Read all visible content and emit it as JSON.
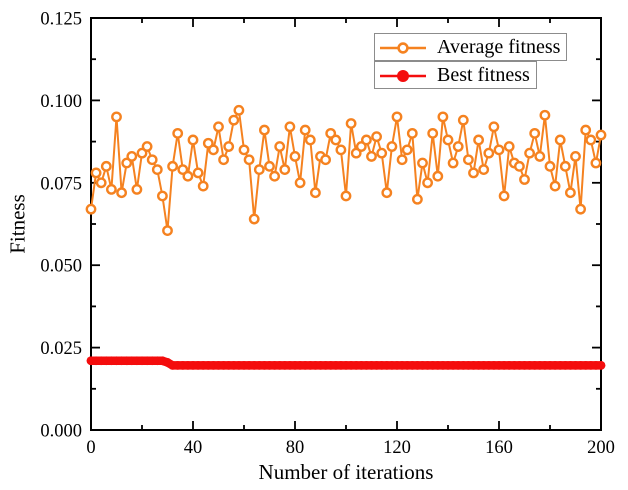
{
  "page": {
    "background": "#ffffff"
  },
  "chart_data": {
    "type": "line",
    "title": "",
    "xlabel": "Number of iterations",
    "ylabel": "Fitness",
    "xlim": [
      0,
      200
    ],
    "ylim": [
      0.0,
      0.125
    ],
    "x_ticks": [
      0,
      40,
      80,
      120,
      160,
      200
    ],
    "x_tick_labels": [
      "0",
      "40",
      "80",
      "120",
      "160",
      "200"
    ],
    "minor_x_ticks": [
      20,
      60,
      100,
      140,
      180
    ],
    "y_ticks": [
      0.0,
      0.025,
      0.05,
      0.075,
      0.1,
      0.125
    ],
    "y_tick_labels": [
      "0.000",
      "0.025",
      "0.050",
      "0.075",
      "0.100",
      "0.125"
    ],
    "minor_y_ticks": [
      0.0125,
      0.0375,
      0.0625,
      0.0875,
      0.1125
    ],
    "grid": false,
    "axis_color": "#000000",
    "tick_style": "inward",
    "legend": {
      "position": "top-right-inside",
      "border_color": "#8c8c8c",
      "background": "#ffffff"
    },
    "series": [
      {
        "name": "Average fitness",
        "color": "#F58220",
        "marker": "open-circle",
        "x": [
          0,
          2,
          4,
          6,
          8,
          10,
          12,
          14,
          16,
          18,
          20,
          22,
          24,
          26,
          28,
          30,
          32,
          34,
          36,
          38,
          40,
          42,
          44,
          46,
          48,
          50,
          52,
          54,
          56,
          58,
          60,
          62,
          64,
          66,
          68,
          70,
          72,
          74,
          76,
          78,
          80,
          82,
          84,
          86,
          88,
          90,
          92,
          94,
          96,
          98,
          100,
          102,
          104,
          106,
          108,
          110,
          112,
          114,
          116,
          118,
          120,
          122,
          124,
          126,
          128,
          130,
          132,
          134,
          136,
          138,
          140,
          142,
          144,
          146,
          148,
          150,
          152,
          154,
          156,
          158,
          160,
          162,
          164,
          166,
          168,
          170,
          172,
          174,
          176,
          178,
          180,
          182,
          184,
          186,
          188,
          190,
          192,
          194,
          196,
          198,
          200
        ],
        "values": [
          0.067,
          0.078,
          0.075,
          0.08,
          0.073,
          0.095,
          0.072,
          0.081,
          0.083,
          0.073,
          0.084,
          0.086,
          0.082,
          0.079,
          0.071,
          0.0605,
          0.08,
          0.09,
          0.079,
          0.077,
          0.088,
          0.078,
          0.074,
          0.087,
          0.085,
          0.092,
          0.082,
          0.086,
          0.094,
          0.097,
          0.085,
          0.082,
          0.064,
          0.079,
          0.091,
          0.08,
          0.077,
          0.086,
          0.079,
          0.092,
          0.083,
          0.075,
          0.091,
          0.088,
          0.072,
          0.083,
          0.082,
          0.09,
          0.088,
          0.085,
          0.071,
          0.093,
          0.084,
          0.086,
          0.088,
          0.083,
          0.089,
          0.084,
          0.072,
          0.086,
          0.095,
          0.082,
          0.085,
          0.09,
          0.07,
          0.081,
          0.075,
          0.09,
          0.077,
          0.095,
          0.088,
          0.081,
          0.086,
          0.094,
          0.082,
          0.078,
          0.088,
          0.079,
          0.084,
          0.092,
          0.085,
          0.071,
          0.086,
          0.081,
          0.08,
          0.076,
          0.084,
          0.09,
          0.083,
          0.0955,
          0.08,
          0.074,
          0.088,
          0.08,
          0.072,
          0.083,
          0.067,
          0.091,
          0.088,
          0.081,
          0.0895
        ]
      },
      {
        "name": "Best fitness",
        "color": "#F40D0D",
        "marker": "filled-circle",
        "x": [
          0,
          2,
          4,
          6,
          8,
          10,
          12,
          14,
          16,
          18,
          20,
          22,
          24,
          26,
          28,
          30,
          32,
          34,
          36,
          38,
          40,
          42,
          44,
          46,
          48,
          50,
          52,
          54,
          56,
          58,
          60,
          62,
          64,
          66,
          68,
          70,
          72,
          74,
          76,
          78,
          80,
          82,
          84,
          86,
          88,
          90,
          92,
          94,
          96,
          98,
          100,
          102,
          104,
          106,
          108,
          110,
          112,
          114,
          116,
          118,
          120,
          122,
          124,
          126,
          128,
          130,
          132,
          134,
          136,
          138,
          140,
          142,
          144,
          146,
          148,
          150,
          152,
          154,
          156,
          158,
          160,
          162,
          164,
          166,
          168,
          170,
          172,
          174,
          176,
          178,
          180,
          182,
          184,
          186,
          188,
          190,
          192,
          194,
          196,
          198,
          200
        ],
        "values": [
          0.021,
          0.021,
          0.021,
          0.021,
          0.021,
          0.021,
          0.021,
          0.021,
          0.021,
          0.021,
          0.021,
          0.021,
          0.021,
          0.021,
          0.021,
          0.0205,
          0.0196,
          0.0196,
          0.0196,
          0.0196,
          0.0196,
          0.0196,
          0.0196,
          0.0196,
          0.0196,
          0.0196,
          0.0196,
          0.0196,
          0.0196,
          0.0196,
          0.0196,
          0.0196,
          0.0196,
          0.0196,
          0.0196,
          0.0196,
          0.0196,
          0.0196,
          0.0196,
          0.0196,
          0.0196,
          0.0196,
          0.0196,
          0.0196,
          0.0196,
          0.0196,
          0.0196,
          0.0196,
          0.0196,
          0.0196,
          0.0196,
          0.0196,
          0.0196,
          0.0196,
          0.0196,
          0.0196,
          0.0196,
          0.0196,
          0.0196,
          0.0196,
          0.0196,
          0.0196,
          0.0196,
          0.0196,
          0.0196,
          0.0196,
          0.0196,
          0.0196,
          0.0196,
          0.0196,
          0.0196,
          0.0196,
          0.0196,
          0.0196,
          0.0196,
          0.0196,
          0.0196,
          0.0196,
          0.0196,
          0.0196,
          0.0196,
          0.0196,
          0.0196,
          0.0196,
          0.0196,
          0.0196,
          0.0196,
          0.0196,
          0.0196,
          0.0196,
          0.0196,
          0.0196,
          0.0196,
          0.0196,
          0.0196,
          0.0196,
          0.0196,
          0.0196,
          0.0196,
          0.0196,
          0.0196
        ]
      }
    ]
  }
}
